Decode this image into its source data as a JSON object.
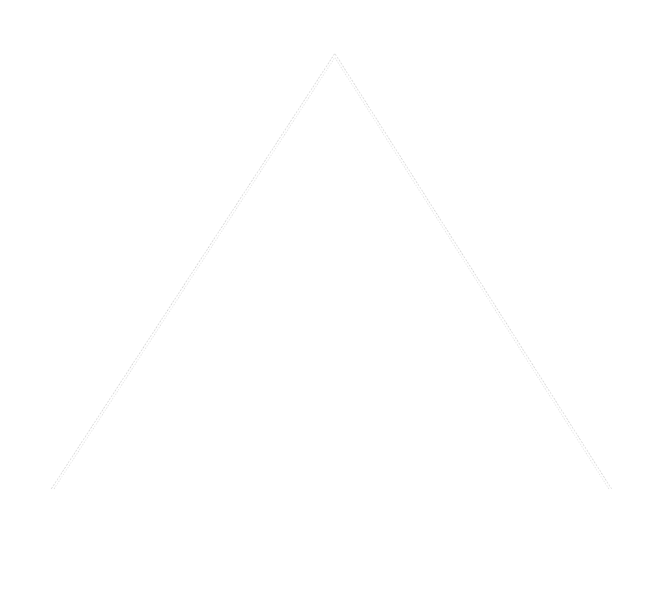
{
  "canvas": {
    "background": "#ffffff"
  },
  "shape": {
    "kind": "chevron-up",
    "stroke_color": "#d6d6d6",
    "stroke_style": "dashed-double-line"
  }
}
